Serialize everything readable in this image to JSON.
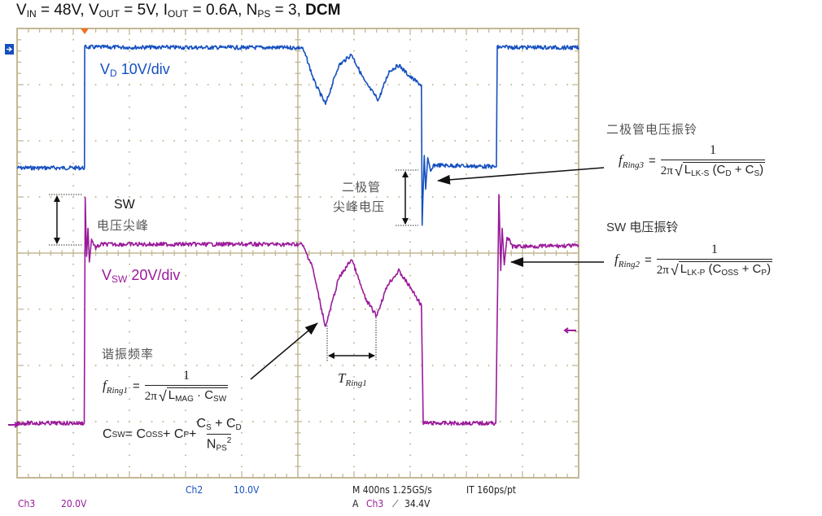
{
  "title": {
    "vin": "V",
    "vin_sub": "IN",
    "vin_val": " = 48V, ",
    "vout": "V",
    "vout_sub": "OUT",
    "vout_val": " = 5V, ",
    "iout": "I",
    "iout_sub": "OUT",
    "iout_val": " = 0.6A, ",
    "nps": "N",
    "nps_sub": "PS",
    "nps_val": " = 3, ",
    "mode": "DCM"
  },
  "colors": {
    "ch2": "#1550c0",
    "ch3": "#9a1a9a",
    "graticule": "#c3b795",
    "trigger": "#f07020",
    "annotation": "#111111"
  },
  "labels": {
    "vd": "V",
    "vd_sub": "D",
    "vd_scale": " 10V/div",
    "vsw": "V",
    "vsw_sub": "SW",
    "vsw_scale": " 20V/div",
    "sw_spike_1": "SW",
    "sw_spike_2": "电压尖峰",
    "diode_spike_1": "二极管",
    "diode_spike_2": "尖峰电压",
    "resonance": "谐振频率",
    "diode_ring": "二极管电压振铃",
    "sw_ring": "SW 电压振铃",
    "t_ring": "T",
    "t_ring_sub": "Ring1"
  },
  "formulas": {
    "ring1": {
      "f": "f",
      "sub": "Ring1",
      "eq": "=",
      "num": "1",
      "two_pi": "2π",
      "rad": "√",
      "l": "L",
      "l_sub": "MAG",
      "mid": " · C",
      "c_sub": "SW"
    },
    "ring2": {
      "f": "f",
      "sub": "Ring2",
      "eq": "=",
      "num": "1",
      "two_pi": "2π",
      "rad": "√",
      "l": "L",
      "l_sub": "LK-P",
      "a": " (C",
      "a_sub": "OSS",
      "b": " + C",
      "b_sub": "P",
      "end": ")"
    },
    "ring3": {
      "f": "f",
      "sub": "Ring3",
      "eq": "=",
      "num": "1",
      "two_pi": "2π",
      "rad": "√",
      "l": "L",
      "l_sub": "LK-S",
      "a": " (C",
      "a_sub": "D",
      "b": " + C",
      "b_sub": "S",
      "end": ")"
    },
    "csw": {
      "c": "C",
      "c_sub": "SW",
      "eq": " = C",
      "oss_sub": "OSS",
      "p": " + C",
      "p_sub": "P",
      "plus": " + ",
      "num_a": "C",
      "num_a_sub": "S",
      "num_b": " + C",
      "num_b_sub": "D",
      "den": "N",
      "den_sub": "PS",
      "den_sup": "2"
    }
  },
  "readout": {
    "ch2": "Ch2",
    "ch2_scale": "10.0V",
    "ch3": "Ch3",
    "ch3_scale": "20.0V",
    "timebase": "M 400ns 1.25GS/s",
    "interp": "IT 160ps/pt",
    "trig_a": "A",
    "trig_src": "Ch3",
    "trig_slope": "⟋",
    "trig_level": "34.4V"
  },
  "chart_data": {
    "type": "line",
    "x_unit": "ns",
    "x_per_div": 400,
    "xlim": [
      0,
      4000
    ],
    "grid": true,
    "series": [
      {
        "name": "VD",
        "channel": "Ch2",
        "volts_per_div": 10,
        "ylim": [
          -23,
          57
        ],
        "x": [
          0,
          480,
          482,
          2030,
          2060,
          2120,
          2197,
          2290,
          2383,
          2480,
          2574,
          2650,
          2719,
          2800,
          2880,
          2885,
          2900,
          2910,
          2925,
          2945,
          2970,
          3414,
          3420,
          4000
        ],
        "y": [
          -21.2,
          -21.2,
          0.3,
          0.2,
          -1.5,
          -6,
          -9.9,
          -3,
          -1.0,
          -6,
          -9.1,
          -4,
          -2.9,
          -5,
          -6.5,
          -31.4,
          -19,
          -25,
          -19.5,
          -22,
          -20.7,
          -21,
          0.3,
          0.2
        ]
      },
      {
        "name": "VSW",
        "channel": "Ch3",
        "volts_per_div": 20,
        "ylim": [
          -2,
          158
        ],
        "x": [
          0,
          478,
          485,
          495,
          505,
          515,
          530,
          560,
          600,
          2030,
          2100,
          2197,
          2290,
          2383,
          2480,
          2560,
          2640,
          2719,
          2800,
          2880,
          2893,
          3410,
          3432,
          3445,
          3455,
          3470,
          3490,
          3530,
          4000
        ],
        "y": [
          0.6,
          0.6,
          81,
          60,
          70,
          58,
          66,
          63,
          64.3,
          64.3,
          57,
          34.8,
          52,
          59.1,
          45,
          38.8,
          50,
          54.8,
          49,
          42.6,
          0.6,
          0.6,
          82,
          55,
          70,
          57,
          67,
          63.5,
          63.8
        ]
      }
    ]
  }
}
